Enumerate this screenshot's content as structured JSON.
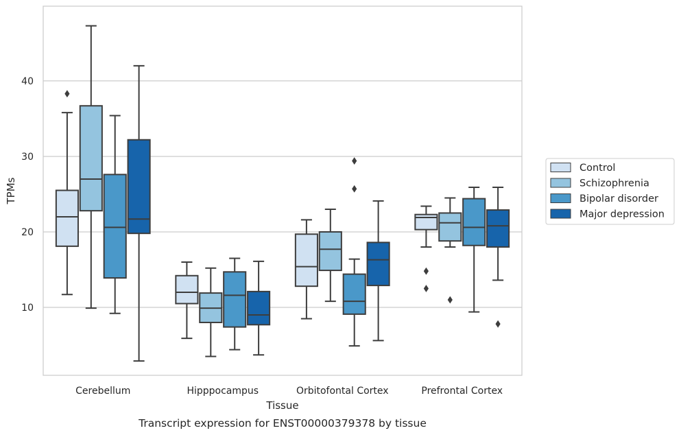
{
  "chart_data": {
    "type": "boxplot",
    "xlabel": "Tissue",
    "ylabel": "TPMs",
    "caption": "Transcript expression for ENST00000379378 by tissue",
    "categories": [
      "Cerebellum",
      "Hipppocampus",
      "Orbitofontal Cortex",
      "Prefrontal Cortex"
    ],
    "yticks": [
      10,
      20,
      30,
      40
    ],
    "ylim": [
      1,
      49.9
    ],
    "grid": "horizontal",
    "legend_position": "right",
    "series": [
      {
        "name": "Control",
        "color": "#d0e1f2",
        "boxes": [
          {
            "min": 11.7,
            "q1": 18.1,
            "median": 22.0,
            "q3": 25.5,
            "max": 35.8,
            "outliers": [
              38.3
            ]
          },
          {
            "min": 5.9,
            "q1": 10.5,
            "median": 12.0,
            "q3": 14.2,
            "max": 16.0,
            "outliers": []
          },
          {
            "min": 8.5,
            "q1": 12.8,
            "median": 15.4,
            "q3": 19.7,
            "max": 21.6,
            "outliers": []
          },
          {
            "min": 18.0,
            "q1": 20.3,
            "median": 21.9,
            "q3": 22.3,
            "max": 23.4,
            "outliers": [
              14.8,
              12.5
            ]
          }
        ]
      },
      {
        "name": "Schizophrenia",
        "color": "#94c4df",
        "boxes": [
          {
            "min": 9.9,
            "q1": 22.8,
            "median": 27.0,
            "q3": 36.7,
            "max": 47.3,
            "outliers": []
          },
          {
            "min": 3.5,
            "q1": 8.0,
            "median": 9.9,
            "q3": 11.9,
            "max": 15.2,
            "outliers": []
          },
          {
            "min": 10.8,
            "q1": 14.9,
            "median": 17.7,
            "q3": 20.0,
            "max": 23.0,
            "outliers": []
          },
          {
            "min": 18.0,
            "q1": 18.8,
            "median": 21.2,
            "q3": 22.5,
            "max": 24.5,
            "outliers": [
              11.0
            ]
          }
        ]
      },
      {
        "name": "Bipolar disorder",
        "color": "#4a98c9",
        "boxes": [
          {
            "min": 9.2,
            "q1": 13.9,
            "median": 20.6,
            "q3": 27.6,
            "max": 35.4,
            "outliers": []
          },
          {
            "min": 4.4,
            "q1": 7.4,
            "median": 11.6,
            "q3": 14.7,
            "max": 16.5,
            "outliers": []
          },
          {
            "min": 4.9,
            "q1": 9.1,
            "median": 10.8,
            "q3": 14.4,
            "max": 16.4,
            "outliers": [
              25.7,
              29.4
            ]
          },
          {
            "min": 9.4,
            "q1": 18.2,
            "median": 20.6,
            "q3": 24.4,
            "max": 25.9,
            "outliers": []
          }
        ]
      },
      {
        "name": "Major depression",
        "color": "#1764ab",
        "boxes": [
          {
            "min": 2.9,
            "q1": 19.8,
            "median": 21.7,
            "q3": 32.2,
            "max": 42.0,
            "outliers": []
          },
          {
            "min": 3.7,
            "q1": 7.7,
            "median": 9.0,
            "q3": 12.1,
            "max": 16.1,
            "outliers": []
          },
          {
            "min": 5.6,
            "q1": 12.9,
            "median": 16.3,
            "q3": 18.6,
            "max": 24.1,
            "outliers": []
          },
          {
            "min": 13.6,
            "q1": 18.0,
            "median": 20.8,
            "q3": 22.9,
            "max": 25.9,
            "outliers": [
              7.8
            ]
          }
        ]
      }
    ]
  }
}
